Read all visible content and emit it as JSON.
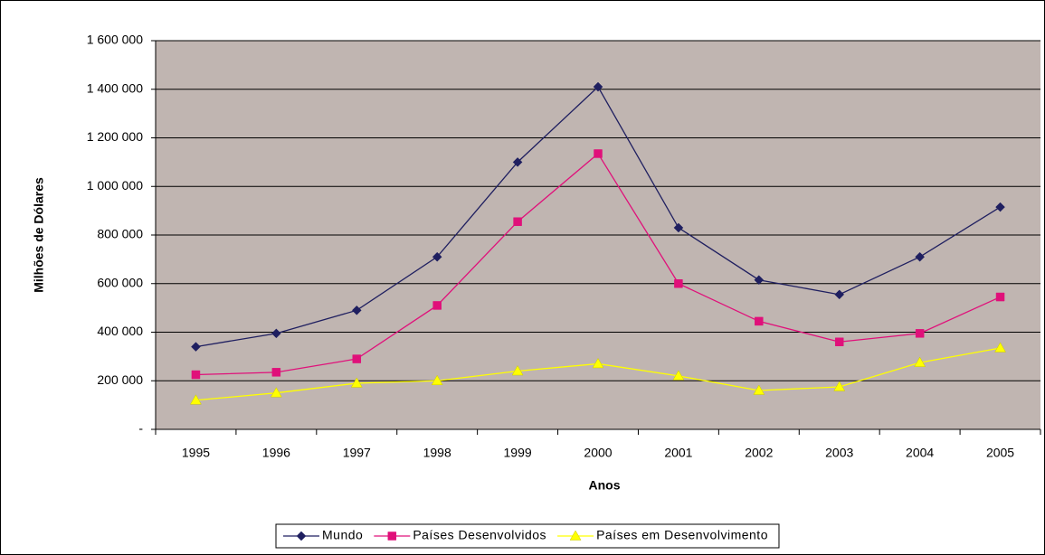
{
  "chart_data": {
    "type": "line",
    "x_label": "Anos",
    "y_label": "Milhões de Dólares",
    "categories": [
      "1995",
      "1996",
      "1997",
      "1998",
      "1999",
      "2000",
      "2001",
      "2002",
      "2003",
      "2004",
      "2005"
    ],
    "series": [
      {
        "name": "Mundo",
        "color": "#1f1f60",
        "marker": "diamond",
        "values": [
          340000,
          395000,
          490000,
          710000,
          1100000,
          1410000,
          830000,
          615000,
          555000,
          710000,
          915000
        ]
      },
      {
        "name": "Países Desenvolvidos",
        "color": "#e0107a",
        "marker": "square",
        "values": [
          225000,
          235000,
          290000,
          510000,
          855000,
          1135000,
          600000,
          445000,
          360000,
          395000,
          545000
        ]
      },
      {
        "name": "Países em Desenvolvimento",
        "color": "#ffff00",
        "marker": "triangle",
        "values": [
          120000,
          150000,
          190000,
          200000,
          240000,
          270000,
          220000,
          160000,
          175000,
          275000,
          335000
        ]
      }
    ],
    "ylim": [
      0,
      1600000
    ],
    "yticks": [
      {
        "value": 0,
        "label": "-"
      },
      {
        "value": 200000,
        "label": "200 000"
      },
      {
        "value": 400000,
        "label": "400 000"
      },
      {
        "value": 600000,
        "label": "600 000"
      },
      {
        "value": 800000,
        "label": "800 000"
      },
      {
        "value": 1000000,
        "label": "1 000 000"
      },
      {
        "value": 1200000,
        "label": "1 200 000"
      },
      {
        "value": 1400000,
        "label": "1 400 000"
      },
      {
        "value": 1600000,
        "label": "1 600 000"
      }
    ],
    "grid": true,
    "legend": "bottom",
    "plot_background": "#c0b5b1"
  }
}
